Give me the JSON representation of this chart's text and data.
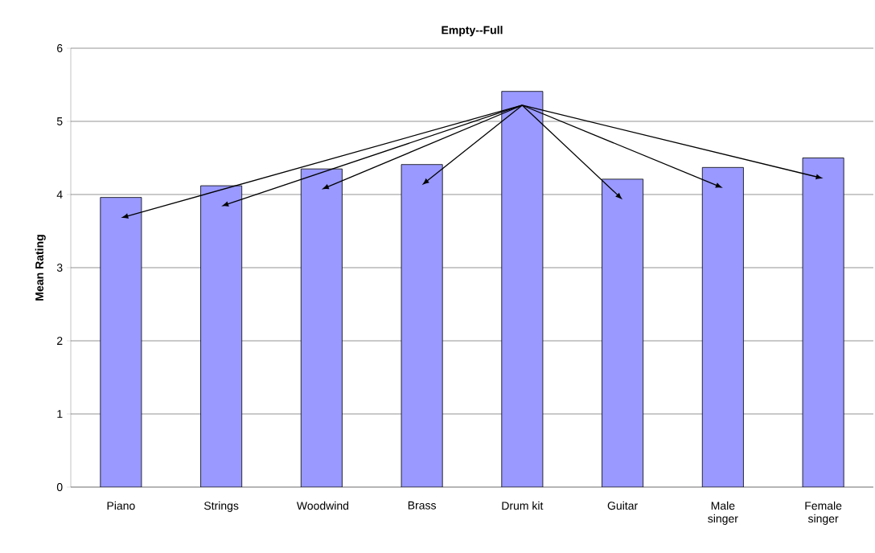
{
  "chart_data": {
    "type": "bar",
    "title": "Empty--Full",
    "ylabel": "Mean Rating",
    "categories": [
      "Piano",
      "Strings",
      "Woodwind",
      "Brass",
      "Drum kit",
      "Guitar",
      "Male singer",
      "Female singer"
    ],
    "values": [
      3.96,
      4.12,
      4.35,
      4.41,
      5.41,
      4.21,
      4.37,
      4.5
    ],
    "color": "#9999ff",
    "ylim": [
      0,
      6
    ],
    "yticks": [
      0,
      1,
      2,
      3,
      4,
      5,
      6
    ],
    "grid": "y"
  }
}
